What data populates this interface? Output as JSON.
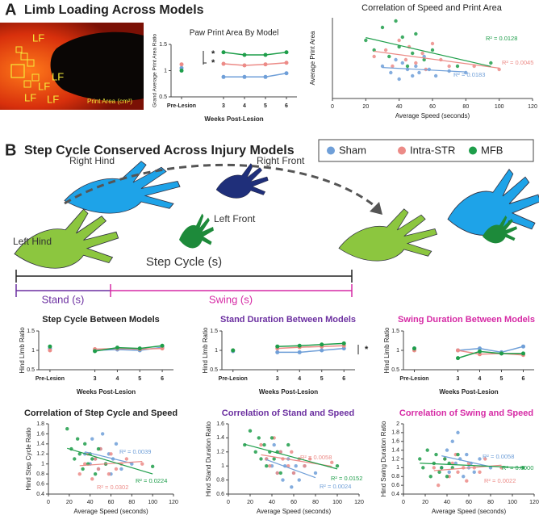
{
  "figure": {
    "panel_a": "A",
    "heading_a": "Limb Loading Across Models",
    "panel_b": "B",
    "heading_b": "Step Cycle Conserved Across Injury Models",
    "photo_labels": [
      "LF",
      "LF",
      "LF",
      "LF",
      "LF"
    ],
    "photo_caption": "Print Area (cm²)",
    "diagram": {
      "right_hind": "Right Hind",
      "right_front": "Right Front",
      "left_front": "Left Front",
      "left_hind": "Left Hind",
      "step_cycle": "Step Cycle (s)",
      "stand": "Stand (s)",
      "swing": "Swing (s)"
    }
  },
  "chart_data": [
    {
      "type": "line",
      "title": "Paw Print Area By Model",
      "xlabel": "Weeks Post-Lesion",
      "ylabel": "Grand Average Print Area Ratio",
      "categories": [
        "Pre-Lesion",
        null,
        "3",
        "4",
        "5",
        "6"
      ],
      "ylim": [
        0.5,
        1.5
      ],
      "yticks": [
        0.5,
        1,
        1.5
      ],
      "annotations": [
        "*",
        "*"
      ],
      "series": [
        {
          "name": "Sham",
          "color": "#6f9fd8",
          "values": [
            1.05,
            null,
            0.88,
            0.88,
            0.88,
            0.95
          ]
        },
        {
          "name": "Intra-STR",
          "color": "#ec8b87",
          "values": [
            1.12,
            null,
            1.13,
            1.1,
            1.12,
            1.15
          ]
        },
        {
          "name": "MFB",
          "color": "#1e9e4a",
          "values": [
            1.0,
            null,
            1.35,
            1.3,
            1.3,
            1.35
          ]
        }
      ]
    },
    {
      "type": "scatter",
      "title": "Correlation of Speed and Print Area",
      "xlabel": "Average Speed (seconds)",
      "ylabel": "Average Print Area",
      "xlim": [
        0,
        120
      ],
      "xticks": [
        0,
        20,
        40,
        60,
        80,
        100,
        120
      ],
      "ylim": [
        0,
        2.5
      ],
      "series": [
        {
          "name": "Sham",
          "color": "#6f9fd8",
          "r2": "R² = 0.0183",
          "x": [
            30,
            35,
            38,
            40,
            42,
            45,
            48,
            50,
            52,
            55,
            58,
            62,
            70,
            80
          ],
          "values": [
            1.0,
            0.8,
            1.2,
            0.6,
            1.1,
            0.9,
            0.7,
            1.0,
            0.8,
            1.3,
            0.9,
            0.7,
            0.85,
            0.8
          ]
        },
        {
          "name": "Intra-STR",
          "color": "#ec8b87",
          "r2": "R² = 0.0045",
          "x": [
            25,
            32,
            36,
            40,
            44,
            46,
            50,
            54,
            56,
            60,
            65,
            70,
            85,
            100
          ],
          "values": [
            1.3,
            1.5,
            1.0,
            1.8,
            1.2,
            1.6,
            1.1,
            1.4,
            0.9,
            1.7,
            1.2,
            1.0,
            1.0,
            0.9
          ]
        },
        {
          "name": "MFB",
          "color": "#1e9e4a",
          "r2": "R² = 0.0128",
          "x": [
            20,
            25,
            30,
            34,
            38,
            40,
            42,
            45,
            48,
            50,
            55,
            60,
            75,
            95
          ],
          "values": [
            1.8,
            1.5,
            2.2,
            1.3,
            2.4,
            1.6,
            1.9,
            1.0,
            1.4,
            2.0,
            1.2,
            1.5,
            1.0,
            1.1
          ]
        }
      ]
    },
    {
      "type": "line",
      "title": "Step Cycle Between Models",
      "xlabel": "Weeks Post-Lesion",
      "ylabel": "Hind LImb Ratio",
      "categories": [
        "Pre-Lesion",
        null,
        "3",
        "4",
        "5",
        "6"
      ],
      "ylim": [
        0.5,
        1.5
      ],
      "yticks": [
        0.5,
        1,
        1.5
      ],
      "series": [
        {
          "name": "Sham",
          "color": "#6f9fd8",
          "values": [
            1.05,
            null,
            1.0,
            1.02,
            1.0,
            1.08
          ]
        },
        {
          "name": "Intra-STR",
          "color": "#ec8b87",
          "values": [
            1.0,
            null,
            1.03,
            1.05,
            1.03,
            1.05
          ]
        },
        {
          "name": "MFB",
          "color": "#1e9e4a",
          "values": [
            1.1,
            null,
            0.98,
            1.07,
            1.05,
            1.12
          ]
        }
      ]
    },
    {
      "type": "line",
      "title": "Stand Duration Between Models",
      "title_color": "#6b2fa0",
      "xlabel": "Weeks Post-Lesion",
      "ylabel": "Hind Llmb Ratio",
      "categories": [
        "Pre-Lesion",
        null,
        "3",
        "4",
        "5",
        "6"
      ],
      "ylim": [
        0.5,
        1.5
      ],
      "yticks": [
        0.5,
        1,
        1.5
      ],
      "annotations": [
        "*"
      ],
      "series": [
        {
          "name": "Sham",
          "color": "#6f9fd8",
          "values": [
            0.98,
            null,
            0.95,
            0.95,
            1.0,
            1.05
          ]
        },
        {
          "name": "Intra-STR",
          "color": "#ec8b87",
          "values": [
            1.0,
            null,
            1.05,
            1.08,
            1.1,
            1.12
          ]
        },
        {
          "name": "MFB",
          "color": "#1e9e4a",
          "values": [
            1.0,
            null,
            1.1,
            1.12,
            1.15,
            1.18
          ]
        }
      ]
    },
    {
      "type": "line",
      "title": "Swing Duration Between Models",
      "title_color": "#d62aa5",
      "xlabel": "Weeks Post-Lesion",
      "ylabel": "Hind Limb Ratio",
      "categories": [
        "Pre-Lesion",
        null,
        "3",
        "4",
        "5",
        "6"
      ],
      "ylim": [
        0.5,
        1.5
      ],
      "yticks": [
        0.5,
        1,
        1.5
      ],
      "series": [
        {
          "name": "Sham",
          "color": "#6f9fd8",
          "values": [
            1.05,
            null,
            1.0,
            1.05,
            0.95,
            1.1
          ]
        },
        {
          "name": "Intra-STR",
          "color": "#ec8b87",
          "values": [
            1.0,
            null,
            1.0,
            0.9,
            0.92,
            0.88
          ]
        },
        {
          "name": "MFB",
          "color": "#1e9e4a",
          "values": [
            1.05,
            null,
            0.8,
            0.97,
            0.92,
            0.92
          ]
        }
      ]
    },
    {
      "type": "scatter",
      "title": "Correlation of Step Cycle and Speed",
      "xlabel": "Average Speed (seconds)",
      "ylabel": "Hind Step Cycle Ratio",
      "xlim": [
        0,
        120
      ],
      "xticks": [
        0,
        20,
        40,
        60,
        80,
        100,
        120
      ],
      "ylim": [
        0.4,
        1.8
      ],
      "yticks": [
        0.4,
        0.6,
        0.8,
        1,
        1.2,
        1.4,
        1.6,
        1.8
      ],
      "series": [
        {
          "name": "Sham",
          "color": "#6f9fd8",
          "r2": "R² = 0.0039",
          "x": [
            35,
            40,
            42,
            45,
            48,
            50,
            52,
            55,
            58,
            60,
            62,
            65,
            70,
            80
          ],
          "values": [
            1.2,
            1.0,
            1.5,
            1.1,
            0.9,
            1.3,
            1.6,
            1.0,
            1.2,
            0.8,
            1.1,
            1.4,
            0.9,
            1.0
          ]
        },
        {
          "name": "Intra-STR",
          "color": "#ec8b87",
          "r2": "R² = 0.0302",
          "x": [
            30,
            35,
            38,
            42,
            45,
            48,
            50,
            55,
            58,
            60,
            65,
            70,
            75,
            90
          ],
          "values": [
            0.8,
            1.0,
            1.2,
            0.7,
            1.1,
            0.9,
            1.3,
            1.0,
            0.8,
            1.2,
            0.9,
            1.0,
            1.1,
            1.0
          ]
        },
        {
          "name": "MFB",
          "color": "#1e9e4a",
          "r2": "R² = 0.0224",
          "x": [
            18,
            22,
            25,
            28,
            30,
            33,
            35,
            38,
            40,
            42,
            45,
            48,
            55,
            100
          ],
          "values": [
            1.7,
            1.3,
            1.1,
            1.5,
            1.2,
            0.9,
            1.4,
            1.0,
            1.2,
            1.1,
            0.8,
            1.3,
            1.0,
            0.95
          ]
        }
      ]
    },
    {
      "type": "scatter",
      "title": "Correlation of Stand and Speed",
      "title_color": "#6b2fa0",
      "xlabel": "Average Speed (seconds)",
      "ylabel": "Hind Stand Duration Ratio",
      "xlim": [
        0,
        120
      ],
      "xticks": [
        0,
        20,
        40,
        60,
        80,
        100,
        120
      ],
      "ylim": [
        0.6,
        1.6
      ],
      "yticks": [
        0.6,
        0.8,
        1,
        1.2,
        1.4,
        1.6
      ],
      "series": [
        {
          "name": "Sham",
          "color": "#6f9fd8",
          "r2": "R² = 0.0024",
          "x": [
            35,
            40,
            42,
            45,
            48,
            50,
            52,
            55,
            58,
            60,
            62,
            65,
            70,
            80
          ],
          "values": [
            1.1,
            1.0,
            1.3,
            0.9,
            1.2,
            0.8,
            1.0,
            1.1,
            0.7,
            0.9,
            1.0,
            0.8,
            1.0,
            0.9
          ]
        },
        {
          "name": "Intra-STR",
          "color": "#ec8b87",
          "r2": "R² = 0.0058",
          "x": [
            30,
            35,
            38,
            42,
            45,
            48,
            50,
            55,
            58,
            60,
            65,
            70,
            75,
            95
          ],
          "values": [
            1.3,
            1.1,
            1.0,
            1.4,
            0.9,
            1.2,
            1.1,
            1.0,
            1.2,
            0.9,
            1.1,
            1.0,
            1.1,
            1.05
          ]
        },
        {
          "name": "MFB",
          "color": "#1e9e4a",
          "r2": "R² = 0.0152",
          "x": [
            15,
            20,
            25,
            28,
            30,
            33,
            35,
            38,
            40,
            42,
            45,
            48,
            55,
            100
          ],
          "values": [
            1.3,
            1.5,
            1.2,
            1.4,
            1.1,
            1.3,
            1.0,
            1.2,
            1.4,
            1.1,
            1.2,
            0.9,
            1.3,
            1.0
          ]
        }
      ]
    },
    {
      "type": "scatter",
      "title": "Correlation of Swing and Speed",
      "title_color": "#d62aa5",
      "xlabel": "Average Speed (seconds)",
      "ylabel": "Hind Swing Duration Ratio",
      "xlim": [
        0,
        120
      ],
      "xticks": [
        0,
        20,
        40,
        60,
        80,
        100,
        120
      ],
      "ylim": [
        0.4,
        2
      ],
      "yticks": [
        0.4,
        0.6,
        0.8,
        1,
        1.2,
        1.4,
        1.6,
        1.8,
        2
      ],
      "series": [
        {
          "name": "Sham",
          "color": "#6f9fd8",
          "r2": "R² = 0.0058",
          "x": [
            35,
            40,
            42,
            45,
            48,
            50,
            52,
            55,
            58,
            60,
            62,
            65,
            70,
            80
          ],
          "values": [
            1.0,
            1.4,
            0.9,
            1.6,
            1.1,
            1.8,
            1.2,
            0.8,
            1.3,
            1.0,
            1.1,
            0.9,
            1.2,
            1.0
          ]
        },
        {
          "name": "Intra-STR",
          "color": "#ec8b87",
          "r2": "R² = 0.0022",
          "x": [
            28,
            32,
            38,
            42,
            45,
            48,
            50,
            55,
            58,
            60,
            65,
            70,
            75,
            90
          ],
          "values": [
            1.0,
            0.6,
            1.2,
            0.8,
            1.1,
            1.3,
            0.9,
            1.0,
            0.7,
            1.1,
            1.0,
            0.9,
            1.2,
            1.0
          ]
        },
        {
          "name": "MFB",
          "color": "#1e9e4a",
          "r2": "R² = 0.0000",
          "x": [
            15,
            18,
            22,
            25,
            28,
            30,
            33,
            35,
            38,
            40,
            42,
            45,
            50,
            110
          ],
          "values": [
            1.2,
            1.0,
            1.4,
            0.8,
            1.1,
            1.3,
            0.9,
            1.0,
            1.2,
            0.8,
            1.1,
            1.0,
            1.3,
            1.0
          ]
        }
      ]
    }
  ]
}
